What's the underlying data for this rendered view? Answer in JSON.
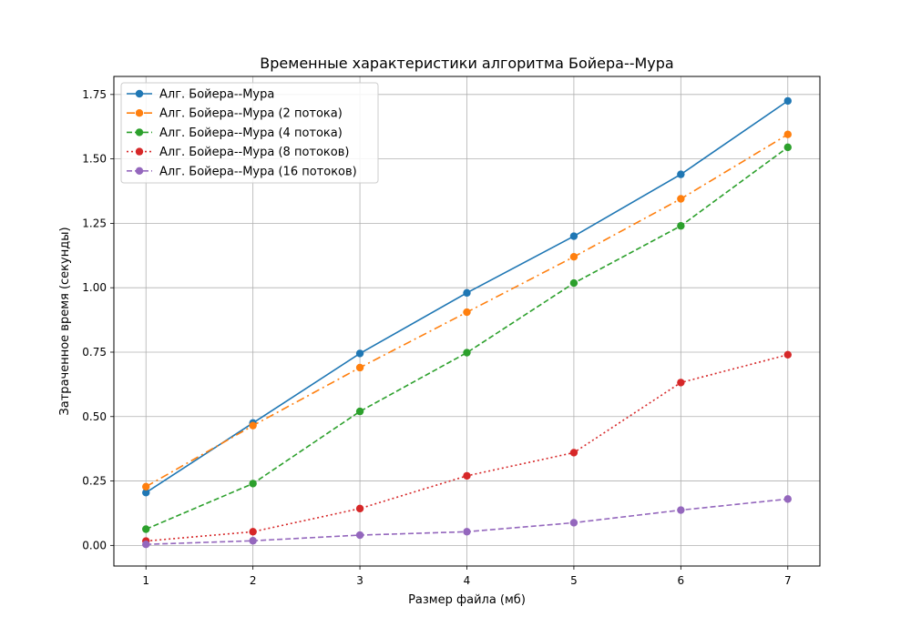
{
  "chart_data": {
    "type": "line",
    "title": "Временные характеристики алгоритма Бойера--Мура",
    "xlabel": "Размер файла (мб)",
    "ylabel": "Затраченное время (секунды)",
    "x": [
      1,
      2,
      3,
      4,
      5,
      6,
      7
    ],
    "xlim": [
      0.7,
      7.3
    ],
    "ylim": [
      -0.08,
      1.82
    ],
    "xticks": [
      "1",
      "2",
      "3",
      "4",
      "5",
      "6",
      "7"
    ],
    "yticks": [
      "0.00",
      "0.25",
      "0.50",
      "0.75",
      "1.00",
      "1.25",
      "1.50",
      "1.75"
    ],
    "grid": true,
    "legend_position": "top-left",
    "series": [
      {
        "name": " Алг. Бойера--Мура",
        "color": "#1f77b4",
        "linestyle": "solid",
        "values": [
          0.205,
          0.475,
          0.745,
          0.98,
          1.2,
          1.44,
          1.725
        ]
      },
      {
        "name": "Алг. Бойера--Мура (2 потока)",
        "color": "#ff7f0e",
        "linestyle": "dashdot",
        "values": [
          0.228,
          0.465,
          0.69,
          0.905,
          1.12,
          1.345,
          1.595
        ]
      },
      {
        "name": "Алг. Бойера--Мура (4 потока)",
        "color": "#2ca02c",
        "linestyle": "dashed",
        "values": [
          0.063,
          0.24,
          0.52,
          0.748,
          1.018,
          1.24,
          1.545
        ]
      },
      {
        "name": "Алг. Бойера--Мура (8 потоков)",
        "color": "#d62728",
        "linestyle": "dotted",
        "values": [
          0.017,
          0.053,
          0.143,
          0.27,
          0.36,
          0.632,
          0.74
        ]
      },
      {
        "name": "Алг. Бойера--Мура (16 потоков)",
        "color": "#9467bd",
        "linestyle": "dashed",
        "values": [
          0.004,
          0.018,
          0.04,
          0.053,
          0.088,
          0.137,
          0.18
        ]
      }
    ]
  }
}
